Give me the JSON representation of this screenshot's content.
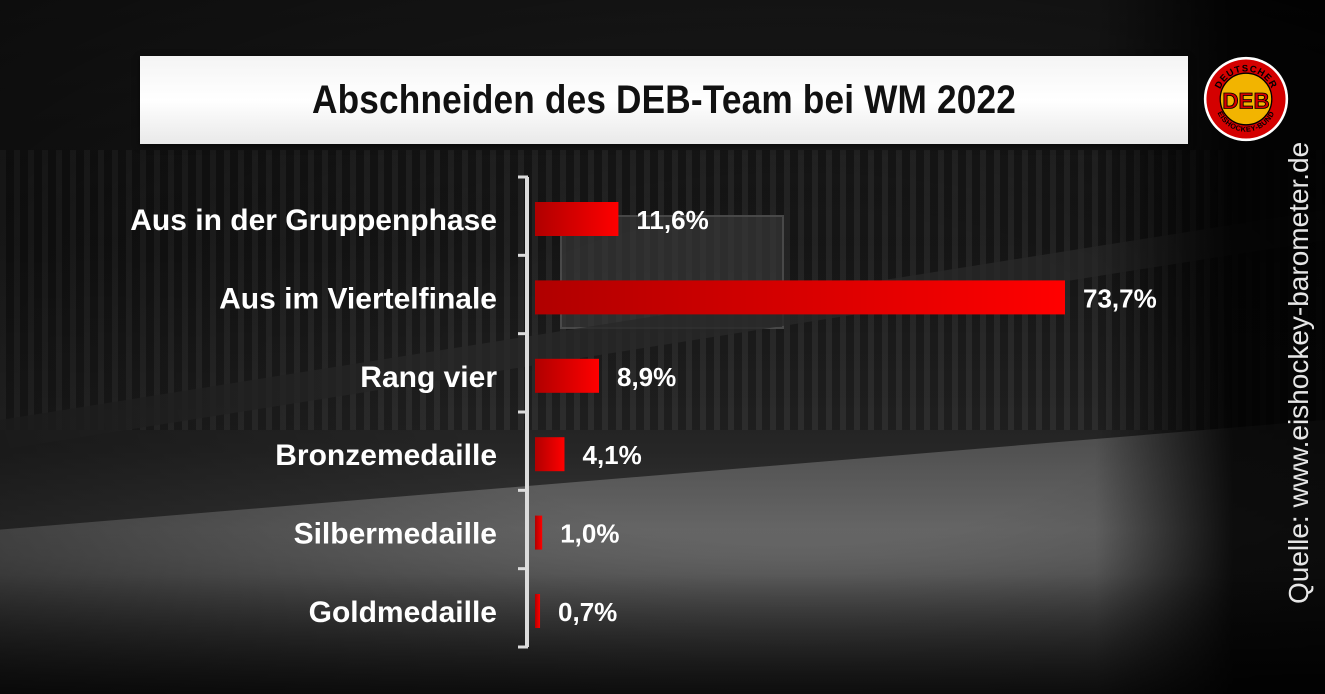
{
  "title": "Abschneiden des DEB-Team bei WM 2022",
  "source": "Quelle: www.eishockey-barometer.de",
  "logo": {
    "icon": "deb-logo",
    "text_top": "DEUTSCHER",
    "text_bottom": "EISHOCKEY-BUND",
    "monogram": "DEB",
    "colors": {
      "ring": "#d40000",
      "inner": "#f2b400",
      "ink": "#000000"
    }
  },
  "colors": {
    "bar": "#ff0000",
    "bar_dark": "#c00000",
    "axis": "#dcdcdc",
    "text": "#ffffff"
  },
  "chart_data": {
    "type": "bar",
    "orientation": "horizontal",
    "categories": [
      "Aus in der Gruppenphase",
      "Aus im Viertelfinale",
      "Rang vier",
      "Bronzemedaille",
      "Silbermedaille",
      "Goldmedaille"
    ],
    "values": [
      11.6,
      73.7,
      8.9,
      4.1,
      1.0,
      0.7
    ],
    "value_labels": [
      "11,6%",
      "73,7%",
      "8,9%",
      "4,1%",
      "1,0%",
      "0,7%"
    ],
    "unit": "%",
    "xlim": [
      0,
      73.7
    ],
    "grid": false,
    "legend": "none"
  }
}
